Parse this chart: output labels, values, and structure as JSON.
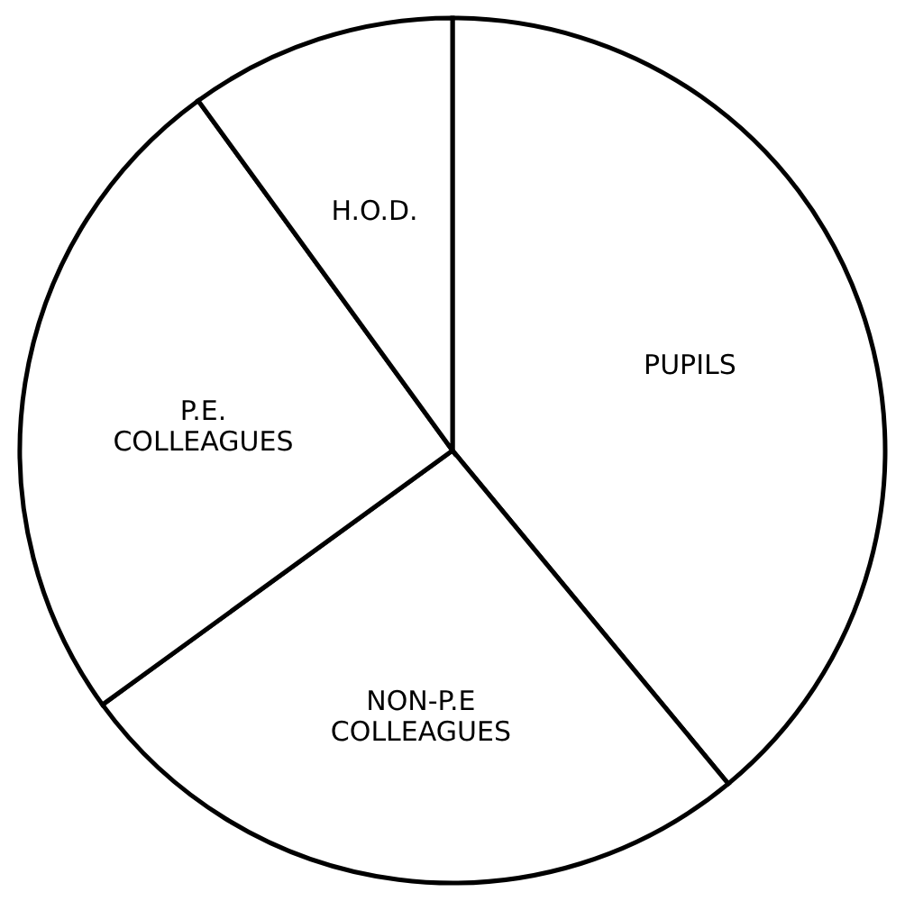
{
  "chart_data": {
    "type": "pie",
    "categories": [
      "PUPILS",
      "NON-P.E COLLEAGUES",
      "P.E. COLLEAGUES",
      "H.O.D."
    ],
    "values": [
      39,
      26,
      25,
      10
    ],
    "colors": [
      "#ffffff",
      "#ffffff",
      "#ffffff",
      "#ffffff"
    ],
    "legend": false
  }
}
